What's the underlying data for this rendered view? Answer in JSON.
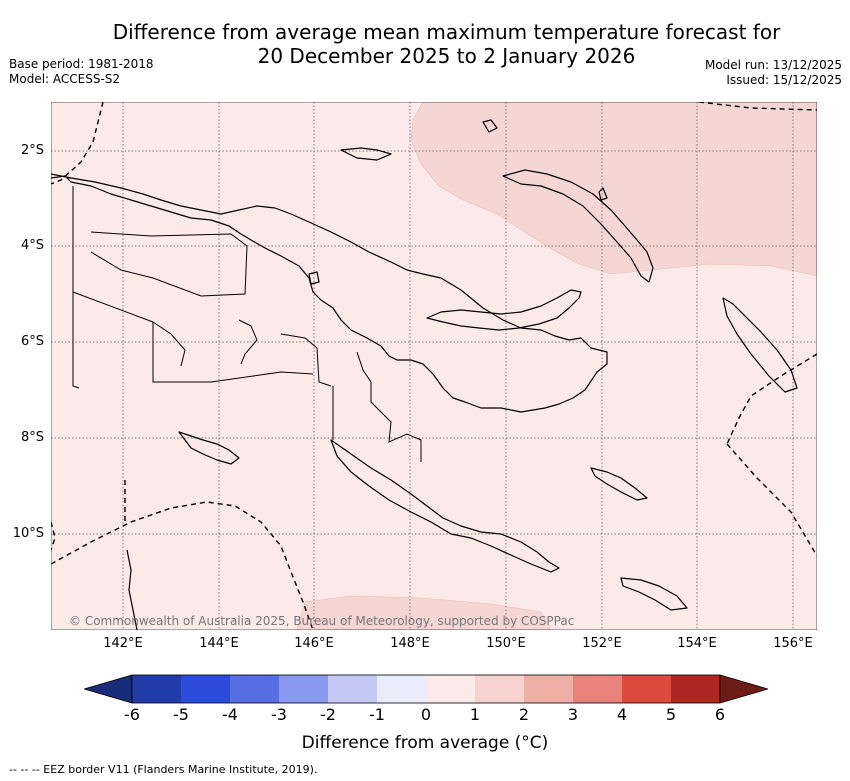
{
  "title": {
    "line1": "Difference from average mean maximum temperature forecast for",
    "line2": "20 December 2025 to 2 January 2026"
  },
  "meta": {
    "base_period": "Base period: 1981-2018",
    "model": "Model: ACCESS-S2",
    "model_run": "Model run: 13/12/2025",
    "issued": "Issued: 15/12/2025"
  },
  "map": {
    "copyright": "© Commonwealth of Australia 2025, Bureau of Meteorology, supported by COSPPac",
    "lon_labels": [
      "142°E",
      "144°E",
      "146°E",
      "148°E",
      "150°E",
      "152°E",
      "154°E",
      "156°E"
    ],
    "lat_labels": [
      "2°S",
      "4°S",
      "6°S",
      "8°S",
      "10°S"
    ],
    "background_color": "#fceae8",
    "warm_anomaly_color": "#f6d6d3"
  },
  "colorbar": {
    "ticks": [
      "-6",
      "-5",
      "-4",
      "-3",
      "-2",
      "-1",
      "0",
      "1",
      "2",
      "3",
      "4",
      "5",
      "6"
    ],
    "colors": [
      "#213ca9",
      "#2c4bdb",
      "#586fe3",
      "#8898ec",
      "#c4caf5",
      "#e9ecfb",
      "#fceae8",
      "#f6d3cf",
      "#efaea6",
      "#e8827a",
      "#dc4a3e",
      "#ad2822"
    ],
    "low_extend_color": "#172d7a",
    "high_extend_color": "#6e1c18",
    "label": "Difference from average (°C)"
  },
  "footnote": "-- -- -- EEZ border V11 (Flanders Marine Institute, 2019)."
}
